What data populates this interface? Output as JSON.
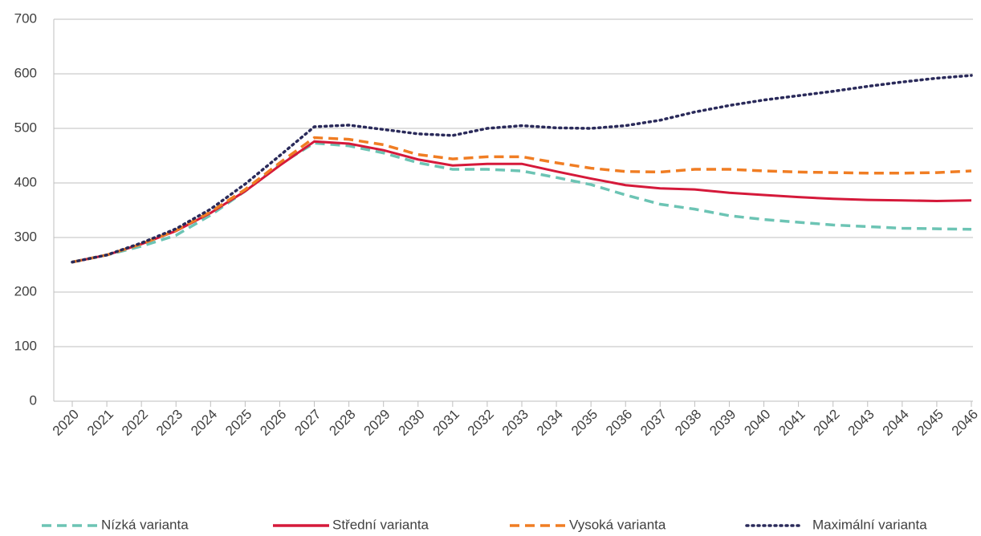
{
  "chart_data": {
    "type": "line",
    "categories": [
      "2020",
      "2021",
      "2022",
      "2023",
      "2024",
      "2025",
      "2026",
      "2027",
      "2028",
      "2029",
      "2030",
      "2031",
      "2032",
      "2033",
      "2034",
      "2035",
      "2036",
      "2037",
      "2038",
      "2039",
      "2040",
      "2041",
      "2042",
      "2043",
      "2044",
      "2045",
      "2046"
    ],
    "series": [
      {
        "name": "Nízká varianta",
        "color": "#6cc4b4",
        "style": "dashed",
        "values": [
          255,
          268,
          284,
          304,
          341,
          385,
          434,
          473,
          468,
          455,
          437,
          425,
          425,
          422,
          410,
          397,
          378,
          361,
          352,
          340,
          333,
          328,
          323,
          320,
          317,
          316,
          315
        ]
      },
      {
        "name": "Střední varianta",
        "color": "#d5193a",
        "style": "solid",
        "values": [
          255,
          268,
          288,
          312,
          345,
          385,
          432,
          476,
          472,
          460,
          443,
          432,
          435,
          435,
          421,
          408,
          396,
          390,
          388,
          382,
          378,
          374,
          371,
          369,
          368,
          367,
          368
        ]
      },
      {
        "name": "Vysoká varianta",
        "color": "#f07d23",
        "style": "dashed",
        "values": [
          255,
          268,
          288,
          313,
          347,
          388,
          437,
          483,
          480,
          470,
          452,
          444,
          448,
          448,
          437,
          427,
          421,
          420,
          425,
          425,
          422,
          420,
          419,
          418,
          418,
          419,
          422
        ]
      },
      {
        "name": "Maximální varianta",
        "color": "#2a2a5a",
        "style": "dotted",
        "values": [
          255,
          268,
          290,
          316,
          352,
          398,
          450,
          503,
          506,
          498,
          490,
          487,
          500,
          505,
          501,
          500,
          505,
          515,
          530,
          542,
          552,
          560,
          568,
          577,
          585,
          592,
          597
        ]
      }
    ],
    "ylim": [
      0,
      700
    ],
    "yticks": [
      0,
      100,
      200,
      300,
      400,
      500,
      600,
      700
    ],
    "grid": true
  }
}
